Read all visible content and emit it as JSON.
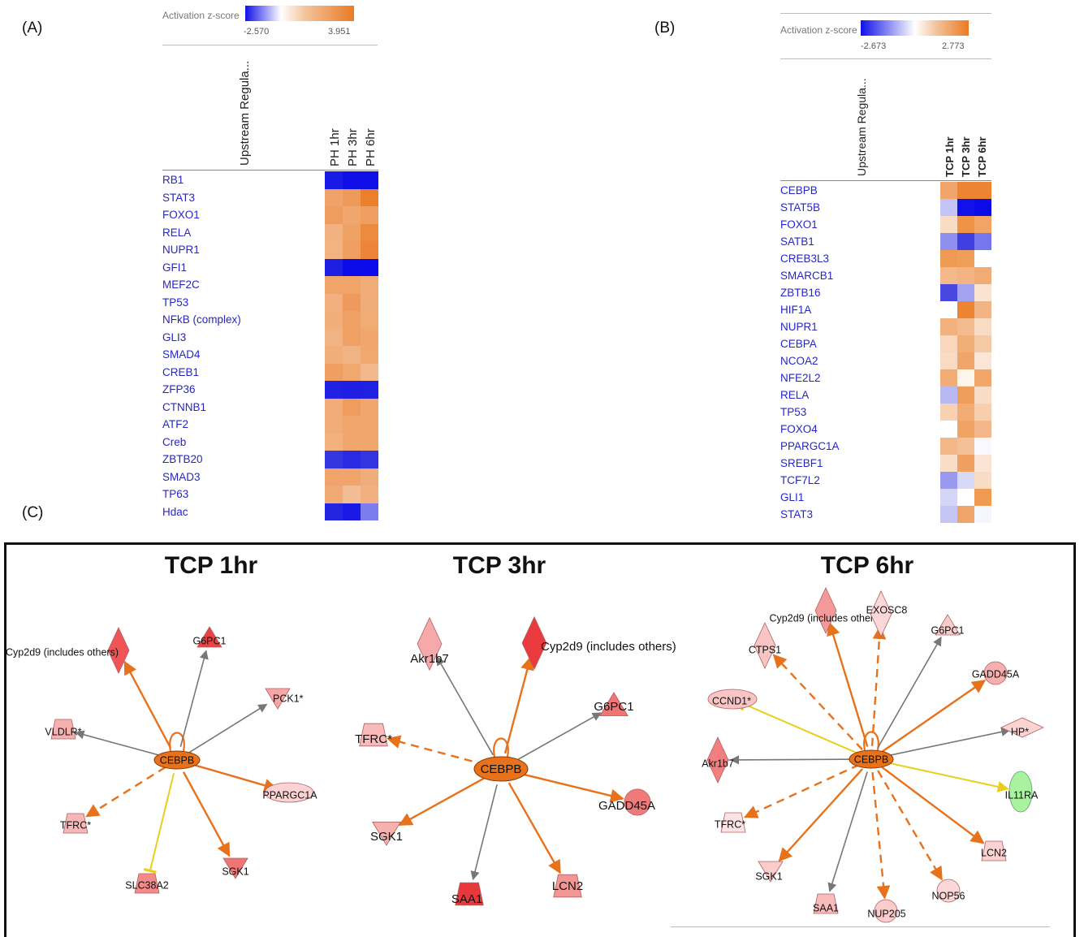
{
  "panels": {
    "a_letter": "(A)",
    "b_letter": "(B)",
    "c_letter": "(C)"
  },
  "heatmap_a": {
    "legend_title": "Activation z-score",
    "min_label": "-2.570",
    "max_label": "3.951",
    "row_header": "Upstream Regula...",
    "columns": [
      "PH 1hr",
      "PH 3hr",
      "PH 6hr"
    ],
    "rows": [
      "RB1",
      "STAT3",
      "FOXO1",
      "RELA",
      "NUPR1",
      "GFI1",
      "MEF2C",
      "TP53",
      "NFkB (complex)",
      "GLI3",
      "SMAD4",
      "CREB1",
      "ZFP36",
      "CTNNB1",
      "ATF2",
      "Creb",
      "ZBTB20",
      "SMAD3",
      "TP63",
      "Hdac"
    ],
    "colors": [
      [
        "#1a1ae6",
        "#0f0fe8",
        "#0e0ee8"
      ],
      [
        "#f0a368",
        "#ee9a5b",
        "#eb7f2b"
      ],
      [
        "#ee9d5f",
        "#f0a66c",
        "#ef9f61"
      ],
      [
        "#f2b181",
        "#efa266",
        "#ec8a3d"
      ],
      [
        "#f2b382",
        "#ef9f60",
        "#ec8537"
      ],
      [
        "#1f1fe3",
        "#0b0bea",
        "#0a0aea"
      ],
      [
        "#f0a46a",
        "#f0a46a",
        "#f1ab76"
      ],
      [
        "#f2b080",
        "#ee9a5c",
        "#f1ad79"
      ],
      [
        "#f1ae7b",
        "#efa064",
        "#f1ab75"
      ],
      [
        "#f2b384",
        "#efa064",
        "#f0a66c"
      ],
      [
        "#f1ae7b",
        "#f2b384",
        "#f0a86f"
      ],
      [
        "#ef9f61",
        "#f0a86f",
        "#f3b88b"
      ],
      [
        "#2121e3",
        "#1f1fe3",
        "#2020e3"
      ],
      [
        "#f1ac78",
        "#ef9d5f",
        "#f0a66c"
      ],
      [
        "#f1ac78",
        "#f0a66c",
        "#f0a66c"
      ],
      [
        "#f2b17f",
        "#f0a66c",
        "#f0a66c"
      ],
      [
        "#3636e0",
        "#2a2ae2",
        "#3434e0"
      ],
      [
        "#f0a36a",
        "#f0a36a",
        "#f1ad79"
      ],
      [
        "#f1aa74",
        "#f3bd93",
        "#f2b080"
      ],
      [
        "#2424e3",
        "#1a1ae6",
        "#7c7cee"
      ]
    ]
  },
  "heatmap_b": {
    "legend_title": "Activation z-score",
    "min_label": "-2.673",
    "max_label": "2.773",
    "row_header": "Upstream Regula...",
    "columns": [
      "TCP 1hr",
      "TCP 3hr",
      "TCP 6hr"
    ],
    "rows": [
      "CEBPB",
      "STAT5B",
      "FOXO1",
      "SATB1",
      "CREB3L3",
      "SMARCB1",
      "ZBTB16",
      "HIF1A",
      "NUPR1",
      "CEBPA",
      "NCOA2",
      "NFE2L2",
      "RELA",
      "TP53",
      "FOXO4",
      "PPARGC1A",
      "SREBF1",
      "TCF7L2",
      "GLI1",
      "STAT3"
    ],
    "colors": [
      [
        "#f1a56b",
        "#ec8431",
        "#ec8431"
      ],
      [
        "#c3c3f5",
        "#1111e9",
        "#0b0bea"
      ],
      [
        "#f9dcc4",
        "#ee9348",
        "#f1a464"
      ],
      [
        "#8f8ff0",
        "#3f3fe2",
        "#7676ee"
      ],
      [
        "#ee9a53",
        "#ef9e5a",
        "#ffffff"
      ],
      [
        "#f4b98a",
        "#f3b382",
        "#f1ab74"
      ],
      [
        "#4848e0",
        "#a2a2f1",
        "#fae3d0"
      ],
      [
        "#ffffff",
        "#ec8533",
        "#f3b485"
      ],
      [
        "#f2b17d",
        "#f4bb8f",
        "#f9dbc3"
      ],
      [
        "#f8d7bd",
        "#f2ae77",
        "#f6c9a5"
      ],
      [
        "#f9dac2",
        "#f0a56b",
        "#fbe6d6"
      ],
      [
        "#f2ad77",
        "#fdf4ec",
        "#f1a66c"
      ],
      [
        "#b8b8f3",
        "#ef9d5b",
        "#f9dcc5"
      ],
      [
        "#f7d1b2",
        "#f2ad76",
        "#f7cfaf"
      ],
      [
        "#ffffff",
        "#f0a464",
        "#f3b78b"
      ],
      [
        "#f3b686",
        "#f4c197",
        "#f8f8fe"
      ],
      [
        "#f9ddc7",
        "#ef9f60",
        "#fbe4d3"
      ],
      [
        "#9999f0",
        "#d8d8f7",
        "#f9dcc6"
      ],
      [
        "#d4d4f7",
        "#ffffff",
        "#ee9a52"
      ],
      [
        "#c6c6f4",
        "#f0a467",
        "#f5f5fd"
      ]
    ]
  },
  "networks": [
    {
      "title": "TCP 1hr",
      "hub": "CEBPB",
      "targets": [
        {
          "label": "Cyp2d9 (includes others)",
          "shape": "diamond",
          "fill": "#ef5456",
          "edge": "orange-solid"
        },
        {
          "label": "G6PC1",
          "shape": "triangle",
          "fill": "#e84447",
          "edge": "gray"
        },
        {
          "label": "PCK1*",
          "shape": "inv-triangle",
          "fill": "#f6a6a6",
          "edge": "gray"
        },
        {
          "label": "PPARGC1A",
          "shape": "ellipse",
          "fill": "#fbd3d3",
          "edge": "orange-solid"
        },
        {
          "label": "SGK1",
          "shape": "inv-triangle",
          "fill": "#f17575",
          "edge": "orange-solid"
        },
        {
          "label": "SLC38A2",
          "shape": "trapezoid",
          "fill": "#f48a8a",
          "edge": "yellow"
        },
        {
          "label": "TFRC*",
          "shape": "trapezoid",
          "fill": "#f8b7b7",
          "edge": "orange-dash"
        },
        {
          "label": "VLDLR*",
          "shape": "trapezoid",
          "fill": "#f7b0b0",
          "edge": "gray"
        }
      ]
    },
    {
      "title": "TCP 3hr",
      "hub": "CEBPB",
      "targets": [
        {
          "label": "Akr1b7",
          "shape": "diamond",
          "fill": "#f7a9a9",
          "edge": "gray"
        },
        {
          "label": "Cyp2d9 (includes others)",
          "shape": "diamond",
          "fill": "#e93a3e",
          "edge": "orange-solid"
        },
        {
          "label": "G6PC1",
          "shape": "triangle",
          "fill": "#f07575",
          "edge": "gray"
        },
        {
          "label": "GADD45A",
          "shape": "circle",
          "fill": "#f07a7a",
          "edge": "orange-solid"
        },
        {
          "label": "LCN2",
          "shape": "trapezoid",
          "fill": "#f49595",
          "edge": "orange-solid"
        },
        {
          "label": "SAA1",
          "shape": "trapezoid",
          "fill": "#e8383b",
          "edge": "gray"
        },
        {
          "label": "SGK1",
          "shape": "inv-triangle",
          "fill": "#f7b0b0",
          "edge": "orange-solid"
        },
        {
          "label": "TFRC*",
          "shape": "trapezoid",
          "fill": "#f8baba",
          "edge": "orange-dash"
        }
      ]
    },
    {
      "title": "TCP 6hr",
      "hub": "CEBPB",
      "targets": [
        {
          "label": "Cyp2d9 (includes others)",
          "shape": "diamond",
          "fill": "#f59a9a",
          "edge": "orange-solid"
        },
        {
          "label": "EXOSC8",
          "shape": "diamond",
          "fill": "#fbd7d7",
          "edge": "orange-dash"
        },
        {
          "label": "G6PC1",
          "shape": "triangle",
          "fill": "#fbcccc",
          "edge": "gray"
        },
        {
          "label": "GADD45A",
          "shape": "circle",
          "fill": "#f6aeae",
          "edge": "orange-solid"
        },
        {
          "label": "HP*",
          "shape": "diamond-wide",
          "fill": "#fbd3d3",
          "edge": "gray"
        },
        {
          "label": "IL11RA",
          "shape": "ellipse-v",
          "fill": "#a8f2a0",
          "edge": "yellow"
        },
        {
          "label": "LCN2",
          "shape": "trapezoid",
          "fill": "#fbd3d3",
          "edge": "orange-solid"
        },
        {
          "label": "NOP56",
          "shape": "circle",
          "fill": "#fbd7d7",
          "edge": "orange-dash"
        },
        {
          "label": "NUP205",
          "shape": "circle",
          "fill": "#fbcccc",
          "edge": "orange-dash"
        },
        {
          "label": "SAA1",
          "shape": "trapezoid",
          "fill": "#f9bcbc",
          "edge": "gray"
        },
        {
          "label": "SGK1",
          "shape": "inv-triangle",
          "fill": "#fbcccc",
          "edge": "orange-solid"
        },
        {
          "label": "TFRC*",
          "shape": "trapezoid",
          "fill": "#fde3e3",
          "edge": "orange-dash"
        },
        {
          "label": "Akr1b7",
          "shape": "diamond",
          "fill": "#f27f7f",
          "edge": "gray"
        },
        {
          "label": "CCND1*",
          "shape": "ellipse",
          "fill": "#f9c4c4",
          "edge": "yellow"
        },
        {
          "label": "CTPS1",
          "shape": "diamond",
          "fill": "#f9c4c4",
          "edge": "orange-dash"
        }
      ]
    }
  ],
  "colors": {
    "hub_fill": "#e8711c",
    "edge_orange": "#e8711c",
    "edge_gray": "#777777",
    "edge_yellow": "#e8cf1c",
    "regulator_text": "#2626c8"
  }
}
